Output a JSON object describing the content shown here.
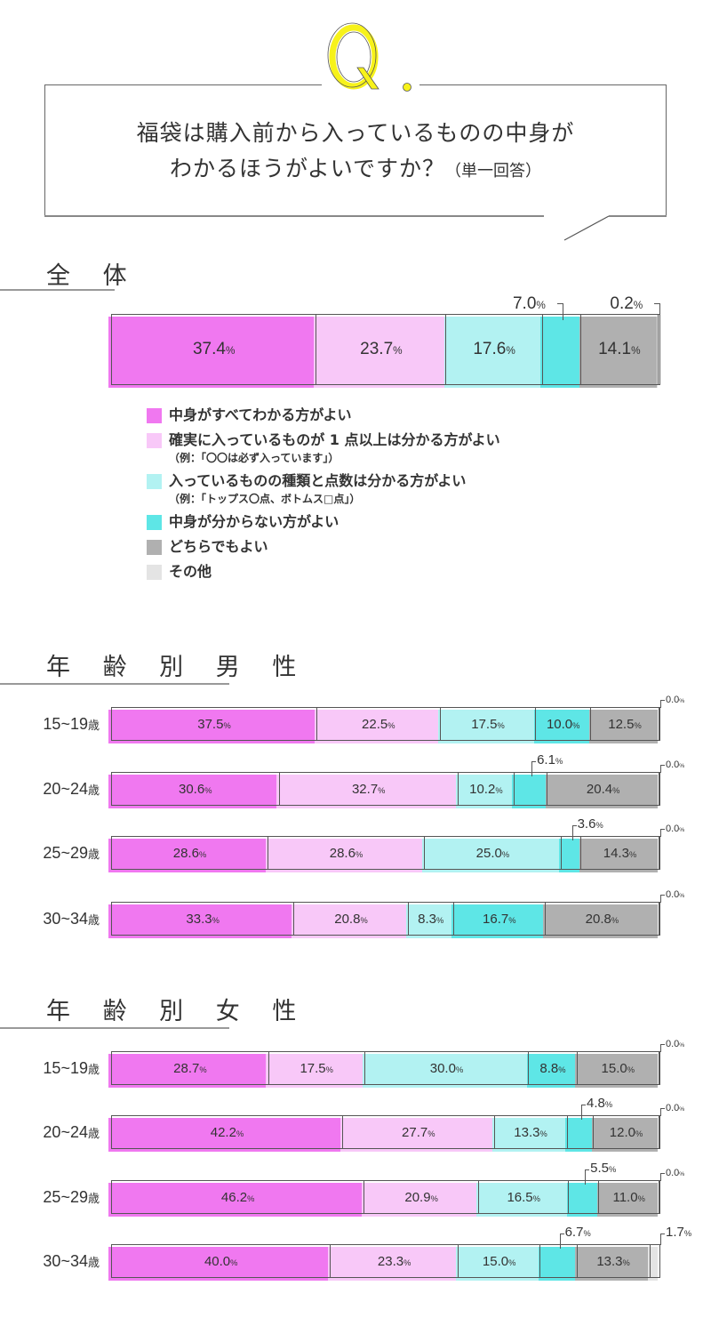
{
  "question": {
    "badge": "Q.",
    "line1": "福袋は購入前から入っているものの中身が",
    "line2": "わかるほうがよいですか？",
    "line2_sub": "（単一回答）"
  },
  "sections": {
    "overall": "全 体",
    "male": "年 齢 別  男 性",
    "female": "年 齢 別  女 性"
  },
  "colors": {
    "all_known": "#f078f0",
    "one_known": "#f8c8f8",
    "type_known": "#b2f2f2",
    "not_known": "#5ee6e6",
    "either": "#b0b0b0",
    "other": "#e4e4e4"
  },
  "legend": [
    {
      "key": "all_known",
      "label": "中身がすべてわかる方がよい",
      "sub": ""
    },
    {
      "key": "one_known",
      "label": "確実に入っているものが 1 点以上は分かる方がよい",
      "sub": "（例：「〇〇は必ず入っています」）"
    },
    {
      "key": "type_known",
      "label": "入っているものの種類と点数は分かる方がよい",
      "sub": "（例：「トップス〇点、ボトムス□点」）"
    },
    {
      "key": "not_known",
      "label": "中身が分からない方がよい",
      "sub": ""
    },
    {
      "key": "either",
      "label": "どちらでもよい",
      "sub": ""
    },
    {
      "key": "other",
      "label": "その他",
      "sub": ""
    }
  ],
  "chart_data": [
    {
      "type": "bar",
      "stacked": true,
      "orientation": "horizontal",
      "title": "全体",
      "categories": [
        "全体"
      ],
      "series": [
        {
          "name": "中身がすべてわかる方がよい",
          "values": [
            37.4
          ]
        },
        {
          "name": "確実に入っているものが1点以上は分かる方がよい",
          "values": [
            23.7
          ]
        },
        {
          "name": "入っているものの種類と点数は分かる方がよい",
          "values": [
            17.6
          ]
        },
        {
          "name": "中身が分からない方がよい",
          "values": [
            7.0
          ]
        },
        {
          "name": "どちらでもよい",
          "values": [
            14.1
          ]
        },
        {
          "name": "その他",
          "values": [
            0.2
          ]
        }
      ],
      "unit": "%"
    },
    {
      "type": "bar",
      "stacked": true,
      "orientation": "horizontal",
      "title": "年齢別 男性",
      "categories": [
        "15~19歳",
        "20~24歳",
        "25~29歳",
        "30~34歳"
      ],
      "series": [
        {
          "name": "中身がすべてわかる方がよい",
          "values": [
            37.5,
            30.6,
            28.6,
            33.3
          ]
        },
        {
          "name": "確実に入っているものが1点以上は分かる方がよい",
          "values": [
            22.5,
            32.7,
            28.6,
            20.8
          ]
        },
        {
          "name": "入っているものの種類と点数は分かる方がよい",
          "values": [
            17.5,
            10.2,
            25.0,
            8.3
          ]
        },
        {
          "name": "中身が分からない方がよい",
          "values": [
            10.0,
            6.1,
            3.6,
            16.7
          ]
        },
        {
          "name": "どちらでもよい",
          "values": [
            12.5,
            20.4,
            14.3,
            20.8
          ]
        },
        {
          "name": "その他",
          "values": [
            0.0,
            0.0,
            0.0,
            0.0
          ]
        }
      ],
      "unit": "%"
    },
    {
      "type": "bar",
      "stacked": true,
      "orientation": "horizontal",
      "title": "年齢別 女性",
      "categories": [
        "15~19歳",
        "20~24歳",
        "25~29歳",
        "30~34歳"
      ],
      "series": [
        {
          "name": "中身がすべてわかる方がよい",
          "values": [
            28.7,
            42.2,
            46.2,
            40.0
          ]
        },
        {
          "name": "確実に入っているものが1点以上は分かる方がよい",
          "values": [
            17.5,
            27.7,
            20.9,
            23.3
          ]
        },
        {
          "name": "入っているものの種類と点数は分かる方がよい",
          "values": [
            30.0,
            13.3,
            16.5,
            15.0
          ]
        },
        {
          "name": "中身が分からない方がよい",
          "values": [
            8.8,
            4.8,
            5.5,
            6.7
          ]
        },
        {
          "name": "どちらでもよい",
          "values": [
            15.0,
            12.0,
            11.0,
            13.3
          ]
        },
        {
          "name": "その他",
          "values": [
            0.0,
            0.0,
            0.0,
            1.7
          ]
        }
      ],
      "unit": "%"
    }
  ],
  "rows": {
    "overall": {
      "label": "",
      "values": [
        37.4,
        23.7,
        17.6,
        7.0,
        14.1,
        0.2
      ],
      "display": [
        "37.4",
        "23.7",
        "17.6",
        "7.0",
        "14.1",
        "0.2"
      ]
    },
    "male": [
      {
        "label": "15~19",
        "values": [
          37.5,
          22.5,
          17.5,
          10.0,
          12.5,
          0.0
        ],
        "display": [
          "37.5",
          "22.5",
          "17.5",
          "10.0",
          "12.5",
          "0.0"
        ]
      },
      {
        "label": "20~24",
        "values": [
          30.6,
          32.7,
          10.2,
          6.1,
          20.4,
          0.0
        ],
        "display": [
          "30.6",
          "32.7",
          "10.2",
          "6.1",
          "20.4",
          "0.0"
        ]
      },
      {
        "label": "25~29",
        "values": [
          28.6,
          28.6,
          25.0,
          3.6,
          14.3,
          0.0
        ],
        "display": [
          "28.6",
          "28.6",
          "25.0",
          "3.6",
          "14.3",
          "0.0"
        ]
      },
      {
        "label": "30~34",
        "values": [
          33.3,
          20.8,
          8.3,
          16.7,
          20.8,
          0.0
        ],
        "display": [
          "33.3",
          "20.8",
          "8.3",
          "16.7",
          "20.8",
          "0.0"
        ]
      }
    ],
    "female": [
      {
        "label": "15~19",
        "values": [
          28.7,
          17.5,
          30.0,
          8.8,
          15.0,
          0.0
        ],
        "display": [
          "28.7",
          "17.5",
          "30.0",
          "8.8",
          "15.0",
          "0.0"
        ]
      },
      {
        "label": "20~24",
        "values": [
          42.2,
          27.7,
          13.3,
          4.8,
          12.0,
          0.0
        ],
        "display": [
          "42.2",
          "27.7",
          "13.3",
          "4.8",
          "12.0",
          "0.0"
        ]
      },
      {
        "label": "25~29",
        "values": [
          46.2,
          20.9,
          16.5,
          5.5,
          11.0,
          0.0
        ],
        "display": [
          "46.2",
          "20.9",
          "16.5",
          "5.5",
          "11.0",
          "0.0"
        ]
      },
      {
        "label": "30~34",
        "values": [
          40.0,
          23.3,
          15.0,
          6.7,
          13.3,
          1.7
        ],
        "display": [
          "40.0",
          "23.3",
          "15.0",
          "6.7",
          "13.3",
          "1.7"
        ]
      }
    ]
  },
  "age_suffix": "歳",
  "percent_sign": "%"
}
